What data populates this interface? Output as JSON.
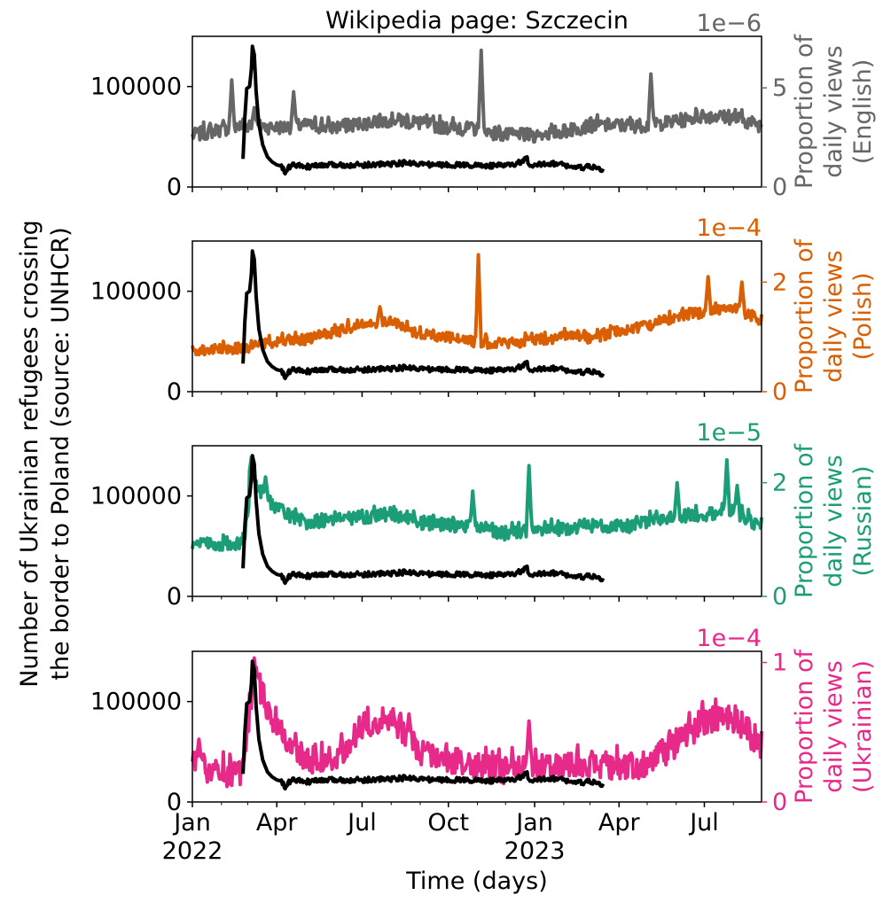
{
  "figure": {
    "title": "Wikipedia page: Szczecin",
    "left_ylabel_line1": "Number of Ukrainian refugees crossing",
    "left_ylabel_line2": "the border to Poland (source: UNHCR)",
    "xlabel": "Time (days)"
  },
  "chart_data": {
    "type": "line",
    "x_axis": {
      "ticks": [
        {
          "date": "2022-01-01",
          "label1": "Jan",
          "label2": "2022"
        },
        {
          "date": "2022-04-01",
          "label1": "Apr",
          "label2": ""
        },
        {
          "date": "2022-07-01",
          "label1": "Jul",
          "label2": ""
        },
        {
          "date": "2022-10-01",
          "label1": "Oct",
          "label2": ""
        },
        {
          "date": "2023-01-01",
          "label1": "Jan",
          "label2": "2023"
        },
        {
          "date": "2023-04-01",
          "label1": "Apr",
          "label2": ""
        },
        {
          "date": "2023-07-01",
          "label1": "Jul",
          "label2": ""
        }
      ],
      "xlim": [
        "2022-01-01",
        "2023-08-31"
      ]
    },
    "left_axis": {
      "ylim": [
        0,
        150000
      ],
      "ticks": [
        0,
        100000
      ],
      "tick_labels": [
        "0",
        "100000"
      ]
    },
    "refugees": {
      "color": "#000000",
      "points": [
        [
          "2022-02-24",
          28000
        ],
        [
          "2022-02-26",
          70000
        ],
        [
          "2022-02-28",
          98000
        ],
        [
          "2022-03-03",
          100000
        ],
        [
          "2022-03-05",
          118000
        ],
        [
          "2022-03-06",
          140000
        ],
        [
          "2022-03-08",
          132000
        ],
        [
          "2022-03-10",
          95000
        ],
        [
          "2022-03-13",
          62000
        ],
        [
          "2022-03-17",
          42000
        ],
        [
          "2022-03-22",
          30000
        ],
        [
          "2022-03-27",
          25000
        ],
        [
          "2022-04-01",
          22000
        ],
        [
          "2022-04-05",
          21000
        ],
        [
          "2022-04-08",
          18000
        ],
        [
          "2022-04-10",
          12000
        ],
        [
          "2022-04-12",
          18000
        ],
        [
          "2022-04-18",
          22000
        ],
        [
          "2022-05-01",
          20000
        ],
        [
          "2022-05-15",
          21000
        ],
        [
          "2022-06-01",
          22000
        ],
        [
          "2022-07-01",
          22000
        ],
        [
          "2022-08-01",
          23000
        ],
        [
          "2022-08-20",
          24000
        ],
        [
          "2022-09-15",
          22000
        ],
        [
          "2022-10-15",
          22000
        ],
        [
          "2022-11-15",
          21000
        ],
        [
          "2022-12-10",
          22000
        ],
        [
          "2022-12-24",
          28000
        ],
        [
          "2022-12-26",
          20000
        ],
        [
          "2022-12-31",
          21000
        ],
        [
          "2023-01-15",
          24000
        ],
        [
          "2023-02-01",
          22000
        ],
        [
          "2023-02-15",
          19000
        ],
        [
          "2023-03-01",
          20000
        ],
        [
          "2023-03-15",
          17000
        ]
      ]
    },
    "panels": [
      {
        "language": "English",
        "color": "#666666",
        "right_label_line1": "Proportion of",
        "right_label_line2": "daily views",
        "right_label_line3": "(English)",
        "offset_text": "1e−6",
        "ylim": [
          0,
          7.6
        ],
        "ticks": [
          0,
          5
        ],
        "tick_labels": [
          "0",
          "5"
        ],
        "base": [
          [
            "2022-01-01",
            2.6
          ],
          [
            "2022-02-01",
            2.9
          ],
          [
            "2022-03-01",
            3.1
          ],
          [
            "2022-04-01",
            3.0
          ],
          [
            "2022-05-01",
            3.1
          ],
          [
            "2022-06-01",
            3.0
          ],
          [
            "2022-07-01",
            3.2
          ],
          [
            "2022-08-01",
            3.4
          ],
          [
            "2022-09-01",
            3.2
          ],
          [
            "2022-10-01",
            3.0
          ],
          [
            "2022-11-01",
            2.9
          ],
          [
            "2022-12-01",
            2.6
          ],
          [
            "2023-01-01",
            2.6
          ],
          [
            "2023-02-01",
            2.8
          ],
          [
            "2023-03-01",
            3.1
          ],
          [
            "2023-04-01",
            3.1
          ],
          [
            "2023-05-01",
            3.1
          ],
          [
            "2023-06-01",
            3.3
          ],
          [
            "2023-07-01",
            3.6
          ],
          [
            "2023-08-01",
            3.5
          ],
          [
            "2023-08-31",
            3.1
          ]
        ],
        "spikes": [
          [
            "2022-02-12",
            5.4
          ],
          [
            "2022-03-08",
            4.0
          ],
          [
            "2022-04-19",
            4.8
          ],
          [
            "2022-11-05",
            6.9
          ],
          [
            "2023-05-05",
            5.7
          ]
        ],
        "noise": 0.35
      },
      {
        "language": "Polish",
        "color": "#d95f02",
        "right_label_line1": "Proportion of",
        "right_label_line2": "daily views",
        "right_label_line3": "(Polish)",
        "offset_text": "1e−4",
        "ylim": [
          0,
          2.75
        ],
        "ticks": [
          0,
          2
        ],
        "tick_labels": [
          "0",
          "2"
        ],
        "base": [
          [
            "2022-01-01",
            0.76
          ],
          [
            "2022-02-01",
            0.76
          ],
          [
            "2022-03-01",
            0.82
          ],
          [
            "2022-04-01",
            0.92
          ],
          [
            "2022-05-01",
            0.95
          ],
          [
            "2022-06-01",
            1.08
          ],
          [
            "2022-07-01",
            1.25
          ],
          [
            "2022-08-01",
            1.28
          ],
          [
            "2022-09-01",
            1.05
          ],
          [
            "2022-10-01",
            1.0
          ],
          [
            "2022-11-01",
            0.9
          ],
          [
            "2022-12-01",
            0.88
          ],
          [
            "2023-01-01",
            0.95
          ],
          [
            "2023-02-01",
            1.0
          ],
          [
            "2023-03-01",
            0.98
          ],
          [
            "2023-04-01",
            1.1
          ],
          [
            "2023-05-01",
            1.2
          ],
          [
            "2023-06-01",
            1.38
          ],
          [
            "2023-07-01",
            1.45
          ],
          [
            "2023-08-01",
            1.55
          ],
          [
            "2023-08-31",
            1.3
          ]
        ],
        "spikes": [
          [
            "2022-11-02",
            2.5
          ],
          [
            "2023-07-05",
            2.1
          ],
          [
            "2023-08-10",
            2.0
          ],
          [
            "2022-07-20",
            1.55
          ]
        ],
        "noise": 0.1
      },
      {
        "language": "Russian",
        "color": "#1b9e77",
        "right_label_line1": "Proportion of",
        "right_label_line2": "daily views",
        "right_label_line3": "(Russian)",
        "offset_text": "1e−5",
        "ylim": [
          0,
          2.65
        ],
        "ticks": [
          0,
          2
        ],
        "tick_labels": [
          "0",
          "2"
        ],
        "base": [
          [
            "2022-01-01",
            0.9
          ],
          [
            "2022-02-01",
            0.92
          ],
          [
            "2022-02-25",
            0.95
          ],
          [
            "2022-03-05",
            2.1
          ],
          [
            "2022-03-20",
            1.7
          ],
          [
            "2022-04-15",
            1.4
          ],
          [
            "2022-05-01",
            1.3
          ],
          [
            "2022-06-01",
            1.35
          ],
          [
            "2022-07-01",
            1.4
          ],
          [
            "2022-08-01",
            1.45
          ],
          [
            "2022-09-01",
            1.3
          ],
          [
            "2022-10-01",
            1.25
          ],
          [
            "2022-11-01",
            1.2
          ],
          [
            "2022-12-01",
            1.1
          ],
          [
            "2023-01-01",
            1.15
          ],
          [
            "2023-02-01",
            1.2
          ],
          [
            "2023-03-01",
            1.25
          ],
          [
            "2023-04-01",
            1.2
          ],
          [
            "2023-05-01",
            1.3
          ],
          [
            "2023-06-01",
            1.4
          ],
          [
            "2023-07-01",
            1.45
          ],
          [
            "2023-08-01",
            1.5
          ],
          [
            "2023-08-31",
            1.2
          ]
        ],
        "spikes": [
          [
            "2022-03-05",
            2.45
          ],
          [
            "2022-03-20",
            2.1
          ],
          [
            "2022-10-27",
            1.85
          ],
          [
            "2022-12-26",
            2.3
          ],
          [
            "2023-06-02",
            2.0
          ],
          [
            "2023-07-25",
            2.4
          ],
          [
            "2023-08-05",
            1.95
          ]
        ],
        "noise": 0.12
      },
      {
        "language": "Ukrainian",
        "color": "#e7298a",
        "right_label_line1": "Proportion of",
        "right_label_line2": "daily views",
        "right_label_line3": "(Ukrainian)",
        "offset_text": "1e−4",
        "ylim": [
          0,
          1.08
        ],
        "ticks": [
          0,
          1
        ],
        "tick_labels": [
          "0",
          "1"
        ],
        "base": [
          [
            "2022-01-01",
            0.28
          ],
          [
            "2022-02-01",
            0.2
          ],
          [
            "2022-02-25",
            0.22
          ],
          [
            "2022-03-08",
            0.95
          ],
          [
            "2022-03-20",
            0.7
          ],
          [
            "2022-04-10",
            0.45
          ],
          [
            "2022-05-01",
            0.3
          ],
          [
            "2022-06-01",
            0.3
          ],
          [
            "2022-07-01",
            0.55
          ],
          [
            "2022-08-01",
            0.6
          ],
          [
            "2022-09-01",
            0.35
          ],
          [
            "2022-10-01",
            0.3
          ],
          [
            "2022-11-01",
            0.25
          ],
          [
            "2022-12-01",
            0.22
          ],
          [
            "2023-01-01",
            0.28
          ],
          [
            "2023-02-01",
            0.27
          ],
          [
            "2023-03-01",
            0.27
          ],
          [
            "2023-04-01",
            0.25
          ],
          [
            "2023-05-01",
            0.27
          ],
          [
            "2023-06-01",
            0.42
          ],
          [
            "2023-07-01",
            0.58
          ],
          [
            "2023-08-01",
            0.6
          ],
          [
            "2023-08-31",
            0.4
          ]
        ],
        "spikes": [
          [
            "2022-01-08",
            0.45
          ],
          [
            "2022-03-08",
            0.95
          ],
          [
            "2022-08-20",
            0.63
          ],
          [
            "2022-12-26",
            0.58
          ]
        ],
        "noise": 0.1
      }
    ]
  }
}
